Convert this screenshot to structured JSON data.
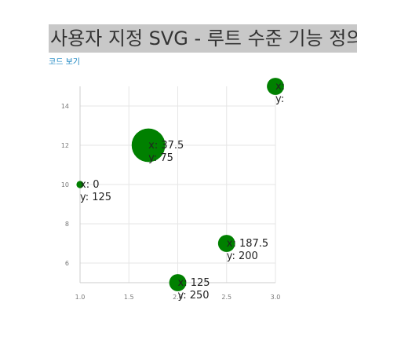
{
  "page": {
    "title": "사용자 지정 SVG - 루트 수준 기능 정의",
    "code_link": "코드 보기"
  },
  "chart_data": {
    "type": "scatter",
    "point_color": "#008000",
    "xlim": [
      1.0,
      3.0
    ],
    "ylim": [
      5,
      15
    ],
    "x_ticks": [
      1.0,
      1.5,
      2.0,
      2.5,
      3.0
    ],
    "y_ticks": [
      6,
      8,
      10,
      12,
      14
    ],
    "x_tick_labels": [
      "1.0",
      "1.5",
      "2.0",
      "2.5",
      "3.0"
    ],
    "y_tick_labels": [
      "6",
      "8",
      "10",
      "12",
      "14"
    ],
    "grid": true,
    "points": [
      {
        "x": 1.0,
        "y": 10,
        "size": 1,
        "label_x": "x: 0",
        "label_y": "y: 125"
      },
      {
        "x": 1.7,
        "y": 12,
        "size": 9,
        "label_x": "x: 37.5",
        "label_y": "y: 75"
      },
      {
        "x": 2.0,
        "y": 5,
        "size": 4,
        "label_x": "x: 125",
        "label_y": "y: 250"
      },
      {
        "x": 2.5,
        "y": 7,
        "size": 4,
        "label_x": "x: 187.5",
        "label_y": "y: 200"
      },
      {
        "x": 3.0,
        "y": 15,
        "size": 4,
        "label_x": "x:",
        "label_y": "y:"
      }
    ]
  }
}
